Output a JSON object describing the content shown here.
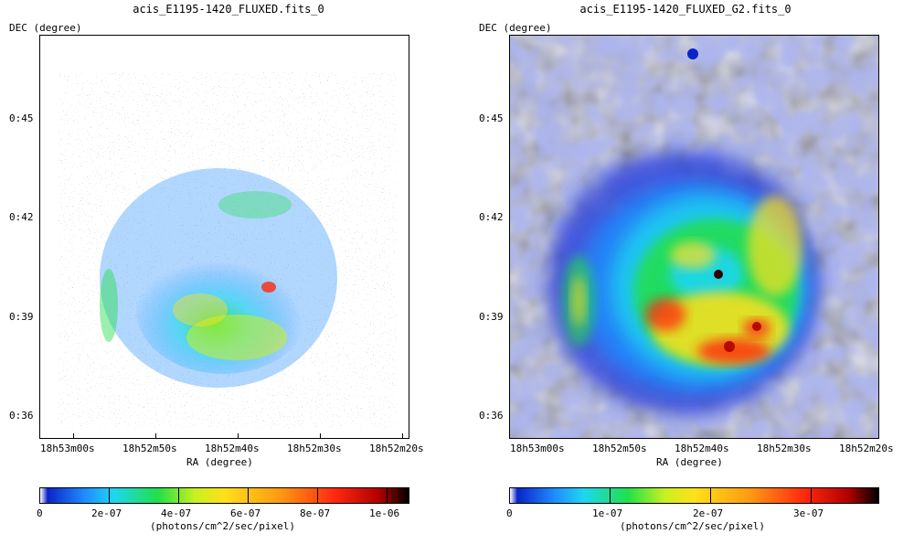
{
  "panels": [
    {
      "title": "acis_E1195-1420_FLUXED.fits_0",
      "y_axis_label": "DEC (degree)",
      "x_axis_label": "RA (degree)",
      "y_ticks": [
        "0:45",
        "0:42",
        "0:39",
        "0:36"
      ],
      "x_ticks": [
        "18h53m00s",
        "18h52m50s",
        "18h52m40s",
        "18h52m30s",
        "18h52m20s"
      ],
      "colorbar_ticks": [
        "0",
        "2e-07",
        "4e-07",
        "6e-07",
        "8e-07",
        "1e-06"
      ],
      "colorbar_units": "(photons/cm^2/sec/pixel)",
      "image_style": "pixelated counts map"
    },
    {
      "title": "acis_E1195-1420_FLUXED_G2.fits_0",
      "y_axis_label": "DEC (degree)",
      "x_axis_label": "RA (degree)",
      "y_ticks": [
        "0:45",
        "0:42",
        "0:39",
        "0:36"
      ],
      "x_ticks": [
        "18h53m00s",
        "18h52m50s",
        "18h52m40s",
        "18h52m30s",
        "18h52m20s"
      ],
      "colorbar_ticks": [
        "0",
        "1e-07",
        "2e-07",
        "3e-07"
      ],
      "colorbar_units": "(photons/cm^2/sec/pixel)",
      "image_style": "gaussian smoothed map"
    }
  ],
  "colormap": [
    "#ffffff",
    "#0a24c8",
    "#1f8bff",
    "#1fd6f0",
    "#20e04a",
    "#c8f020",
    "#ffe01a",
    "#ff9a12",
    "#ff2810",
    "#b00000",
    "#000000"
  ]
}
